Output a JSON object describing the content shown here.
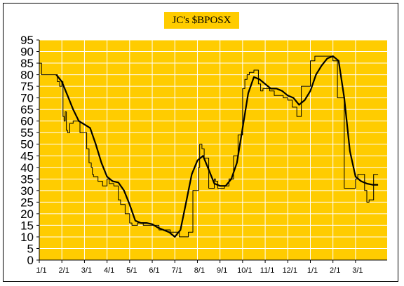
{
  "chart_data": {
    "type": "line",
    "title": "JC's $BPOSX",
    "xlabel": "",
    "ylabel": "",
    "ylim": [
      0,
      95
    ],
    "yticks": [
      0,
      5,
      10,
      15,
      20,
      25,
      30,
      35,
      40,
      45,
      50,
      55,
      60,
      65,
      70,
      75,
      80,
      85,
      90,
      95
    ],
    "xticks": [
      "1/1",
      "2/1",
      "3/1",
      "4/1",
      "5/1",
      "6/1",
      "7/1",
      "8/1",
      "9/1",
      "10/1",
      "11/1",
      "12/1",
      "1/1",
      "2/1",
      "3/1"
    ],
    "grid": true,
    "legend": "none",
    "colors": {
      "plot_bg": "#ffcc00",
      "grid": "#ffffff",
      "series": "#000000"
    },
    "series": [
      {
        "style": "thin-step",
        "x": [
          0,
          0.1,
          0.3,
          0.4,
          0.6,
          0.8,
          0.9,
          1.0,
          1.05,
          1.1,
          1.15,
          1.2,
          1.25,
          1.35,
          1.5,
          1.6,
          1.8,
          2.0,
          2.1,
          2.2,
          2.3,
          2.35,
          2.4,
          2.6,
          2.8,
          3.0,
          3.1,
          3.2,
          3.3,
          3.5,
          3.6,
          3.8,
          4.0,
          4.1,
          4.2,
          4.35,
          4.5,
          4.6,
          4.8,
          5.0,
          5.3,
          5.6,
          5.8,
          6.0,
          6.2,
          6.4,
          6.6,
          6.8,
          7.0,
          7.05,
          7.1,
          7.2,
          7.3,
          7.4,
          7.5,
          7.6,
          7.7,
          7.75,
          7.8,
          7.9,
          8.0,
          8.2,
          8.4,
          8.6,
          8.8,
          9.0,
          9.1,
          9.2,
          9.3,
          9.5,
          9.6,
          9.7,
          9.8,
          9.9,
          10.0,
          10.2,
          10.4,
          10.6,
          10.8,
          11.0,
          11.2,
          11.4,
          11.6,
          11.8,
          12.0,
          12.2,
          12.4,
          12.6,
          12.8,
          13.0,
          13.2,
          13.5,
          13.8,
          14.0,
          14.1,
          14.2,
          14.3,
          14.4,
          14.5,
          14.6,
          14.8,
          14.9,
          15.0
        ],
        "y": [
          85,
          80,
          80,
          80,
          80,
          77,
          75,
          77,
          62,
          60,
          64,
          56,
          55,
          59,
          60,
          60,
          55,
          55,
          48,
          42,
          40,
          37,
          36,
          34,
          32,
          35,
          33,
          33,
          32,
          26,
          24,
          20,
          16,
          15,
          15,
          16,
          16,
          15,
          15,
          15,
          13,
          13,
          12,
          12,
          10,
          10,
          12,
          30,
          30,
          40,
          50,
          48,
          44,
          44,
          31,
          31,
          31,
          35,
          34,
          31,
          31,
          32,
          35,
          45,
          54,
          74,
          78,
          80,
          81,
          82,
          82,
          76,
          73,
          74,
          74,
          73,
          71,
          71,
          70,
          69,
          66,
          62,
          75,
          75,
          86,
          88,
          88,
          88,
          88,
          86,
          70,
          31,
          31,
          35,
          37,
          37,
          37,
          30,
          25,
          26,
          37,
          37,
          37
        ],
        "note": "x in months since first 1/1 tick"
      },
      {
        "style": "thick-average",
        "x": [
          0.75,
          1.0,
          1.25,
          1.5,
          1.75,
          2.0,
          2.25,
          2.5,
          2.75,
          3.0,
          3.25,
          3.5,
          3.75,
          4.0,
          4.25,
          4.5,
          4.75,
          5.0,
          5.25,
          5.5,
          5.75,
          6.0,
          6.25,
          6.5,
          6.75,
          7.0,
          7.25,
          7.5,
          7.75,
          8.0,
          8.25,
          8.5,
          8.75,
          9.0,
          9.25,
          9.5,
          9.75,
          10.0,
          10.25,
          10.5,
          10.75,
          11.0,
          11.25,
          11.5,
          11.75,
          12.0,
          12.25,
          12.5,
          12.75,
          13.0,
          13.25,
          13.5,
          13.75,
          14.0,
          14.25,
          14.5,
          14.75,
          15.0
        ],
        "y": [
          80,
          77,
          71,
          65,
          60,
          58.5,
          57,
          50,
          42,
          36,
          34,
          33.5,
          30,
          24,
          17,
          16,
          16,
          15.5,
          14,
          13,
          12,
          10,
          13,
          25,
          37,
          43,
          45,
          39,
          33,
          32,
          32,
          35,
          42,
          57,
          72,
          79,
          78,
          76,
          74,
          74,
          73,
          71,
          70,
          67,
          69,
          73,
          80,
          84,
          87,
          88,
          86,
          70,
          47,
          36,
          34,
          33,
          32.5,
          32.5
        ]
      }
    ]
  }
}
